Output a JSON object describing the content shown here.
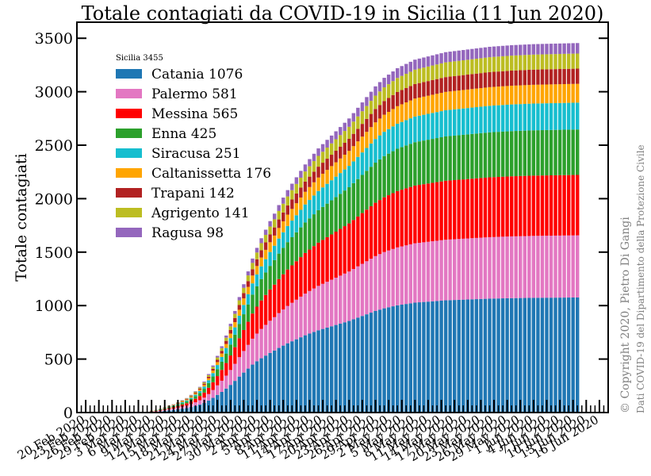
{
  "chart_data": {
    "type": "bar",
    "stacked": true,
    "title": "Totale contagiati da COVID-19 in Sicilia (11 Jun 2020)",
    "ylabel": "Totale contagiati",
    "xlabel": "",
    "ylim": [
      0,
      3650
    ],
    "yticks": [
      0,
      500,
      1000,
      1500,
      2000,
      2500,
      3000,
      3500
    ],
    "x_range": [
      "2020-02-18",
      "2020-06-18"
    ],
    "x_ticks": [
      {
        "date": "2020-02-20",
        "label": "20 Feb 2020"
      },
      {
        "date": "2020-02-23",
        "label": "23 Feb 2020"
      },
      {
        "date": "2020-02-26",
        "label": "26 Feb 2020"
      },
      {
        "date": "2020-02-29",
        "label": "29 Feb 2020"
      },
      {
        "date": "2020-03-03",
        "label": "3 Mar 2020"
      },
      {
        "date": "2020-03-06",
        "label": "6 Mar 2020"
      },
      {
        "date": "2020-03-09",
        "label": "9 Mar 2020"
      },
      {
        "date": "2020-03-12",
        "label": "12 Mar 2020"
      },
      {
        "date": "2020-03-15",
        "label": "15 Mar 2020"
      },
      {
        "date": "2020-03-18",
        "label": "18 Mar 2020"
      },
      {
        "date": "2020-03-21",
        "label": "21 Mar 2020"
      },
      {
        "date": "2020-03-24",
        "label": "24 Mar 2020"
      },
      {
        "date": "2020-03-27",
        "label": "27 Mar 2020"
      },
      {
        "date": "2020-03-30",
        "label": "30 Mar 2020"
      },
      {
        "date": "2020-04-02",
        "label": "2 Apr 2020"
      },
      {
        "date": "2020-04-05",
        "label": "5 Apr 2020"
      },
      {
        "date": "2020-04-08",
        "label": "8 Apr 2020"
      },
      {
        "date": "2020-04-11",
        "label": "11 Apr 2020"
      },
      {
        "date": "2020-04-14",
        "label": "14 Apr 2020"
      },
      {
        "date": "2020-04-17",
        "label": "17 Apr 2020"
      },
      {
        "date": "2020-04-20",
        "label": "20 Apr 2020"
      },
      {
        "date": "2020-04-23",
        "label": "23 Apr 2020"
      },
      {
        "date": "2020-04-26",
        "label": "26 Apr 2020"
      },
      {
        "date": "2020-04-29",
        "label": "29 Apr 2020"
      },
      {
        "date": "2020-05-02",
        "label": "2 May 2020"
      },
      {
        "date": "2020-05-05",
        "label": "5 May 2020"
      },
      {
        "date": "2020-05-08",
        "label": "8 May 2020"
      },
      {
        "date": "2020-05-11",
        "label": "11 May 2020"
      },
      {
        "date": "2020-05-14",
        "label": "14 May 2020"
      },
      {
        "date": "2020-05-17",
        "label": "17 May 2020"
      },
      {
        "date": "2020-05-20",
        "label": "20 May 2020"
      },
      {
        "date": "2020-05-23",
        "label": "23 May 2020"
      },
      {
        "date": "2020-05-26",
        "label": "26 May 2020"
      },
      {
        "date": "2020-05-29",
        "label": "29 May 2020"
      },
      {
        "date": "2020-06-01",
        "label": "1 Jun 2020"
      },
      {
        "date": "2020-06-04",
        "label": "4 Jun 2020"
      },
      {
        "date": "2020-06-07",
        "label": "7 Jun 2020"
      },
      {
        "date": "2020-06-10",
        "label": "10 Jun 2020"
      },
      {
        "date": "2020-06-13",
        "label": "13 Jun 2020"
      },
      {
        "date": "2020-06-16",
        "label": "16 Jun 2020"
      }
    ],
    "legend_title": "Sicilia  3455",
    "legend_position": "upper-left",
    "grid": false,
    "series": [
      {
        "name": "Catania 1076",
        "color": "#1f77b4"
      },
      {
        "name": "Palermo 581",
        "color": "#e377c2"
      },
      {
        "name": "Messina 565",
        "color": "#ff0000"
      },
      {
        "name": "Enna 425",
        "color": "#2ca02c"
      },
      {
        "name": "Siracusa 251",
        "color": "#17becf"
      },
      {
        "name": "Caltanissetta 176",
        "color": "#ffa500"
      },
      {
        "name": "Trapani 142",
        "color": "#b22222"
      },
      {
        "name": "Agrigento 141",
        "color": "#bcbd22"
      },
      {
        "name": "Ragusa 98",
        "color": "#9467bd"
      }
    ],
    "dates": [
      "2020-03-06",
      "2020-03-07",
      "2020-03-08",
      "2020-03-09",
      "2020-03-10",
      "2020-03-11",
      "2020-03-12",
      "2020-03-13",
      "2020-03-14",
      "2020-03-15",
      "2020-03-16",
      "2020-03-17",
      "2020-03-18",
      "2020-03-19",
      "2020-03-20",
      "2020-03-21",
      "2020-03-22",
      "2020-03-23",
      "2020-03-24",
      "2020-03-25",
      "2020-03-26",
      "2020-03-27",
      "2020-03-28",
      "2020-03-29",
      "2020-03-30",
      "2020-03-31",
      "2020-04-01",
      "2020-04-02",
      "2020-04-03",
      "2020-04-04",
      "2020-04-05",
      "2020-04-06",
      "2020-04-07",
      "2020-04-08",
      "2020-04-09",
      "2020-04-10",
      "2020-04-11",
      "2020-04-12",
      "2020-04-13",
      "2020-04-14",
      "2020-04-15",
      "2020-04-16",
      "2020-04-17",
      "2020-04-18",
      "2020-04-19",
      "2020-04-20",
      "2020-04-21",
      "2020-04-22",
      "2020-04-23",
      "2020-04-24",
      "2020-04-25",
      "2020-04-26",
      "2020-04-27",
      "2020-04-28",
      "2020-04-29",
      "2020-04-30",
      "2020-05-01",
      "2020-05-02",
      "2020-05-03",
      "2020-05-04",
      "2020-05-05",
      "2020-05-06",
      "2020-05-07",
      "2020-05-08",
      "2020-05-09",
      "2020-05-10",
      "2020-05-11",
      "2020-05-12",
      "2020-05-13",
      "2020-05-14",
      "2020-05-15",
      "2020-05-16",
      "2020-05-17",
      "2020-05-18",
      "2020-05-19",
      "2020-05-20",
      "2020-05-21",
      "2020-05-22",
      "2020-05-23",
      "2020-05-24",
      "2020-05-25",
      "2020-05-26",
      "2020-05-27",
      "2020-05-28",
      "2020-05-29",
      "2020-05-30",
      "2020-05-31",
      "2020-06-01",
      "2020-06-02",
      "2020-06-03",
      "2020-06-04",
      "2020-06-05",
      "2020-06-06",
      "2020-06-07",
      "2020-06-08",
      "2020-06-09",
      "2020-06-10",
      "2020-06-11"
    ],
    "totals": [
      18,
      25,
      35,
      50,
      65,
      78,
      95,
      115,
      135,
      165,
      200,
      240,
      290,
      360,
      440,
      530,
      620,
      720,
      830,
      950,
      1080,
      1200,
      1320,
      1440,
      1540,
      1630,
      1710,
      1790,
      1860,
      1940,
      2010,
      2080,
      2140,
      2200,
      2260,
      2320,
      2370,
      2420,
      2470,
      2510,
      2550,
      2590,
      2630,
      2670,
      2710,
      2750,
      2800,
      2850,
      2900,
      2950,
      3000,
      3050,
      3090,
      3130,
      3160,
      3190,
      3220,
      3240,
      3260,
      3280,
      3300,
      3310,
      3320,
      3330,
      3340,
      3350,
      3360,
      3370,
      3375,
      3380,
      3385,
      3390,
      3395,
      3400,
      3405,
      3410,
      3415,
      3420,
      3423,
      3426,
      3429,
      3432,
      3435,
      3437,
      3439,
      3441,
      3443,
      3445,
      3446,
      3447,
      3448,
      3449,
      3450,
      3451,
      3452,
      3453,
      3454,
      3455
    ],
    "shares_at_end": [
      1076,
      581,
      565,
      425,
      251,
      176,
      142,
      141,
      98
    ]
  },
  "side_notes": {
    "copyright": "© Copyright 2020, Pietro Di Gangi",
    "source": "Dati COVID-19 del Dipartimento della Protezione Civile"
  }
}
